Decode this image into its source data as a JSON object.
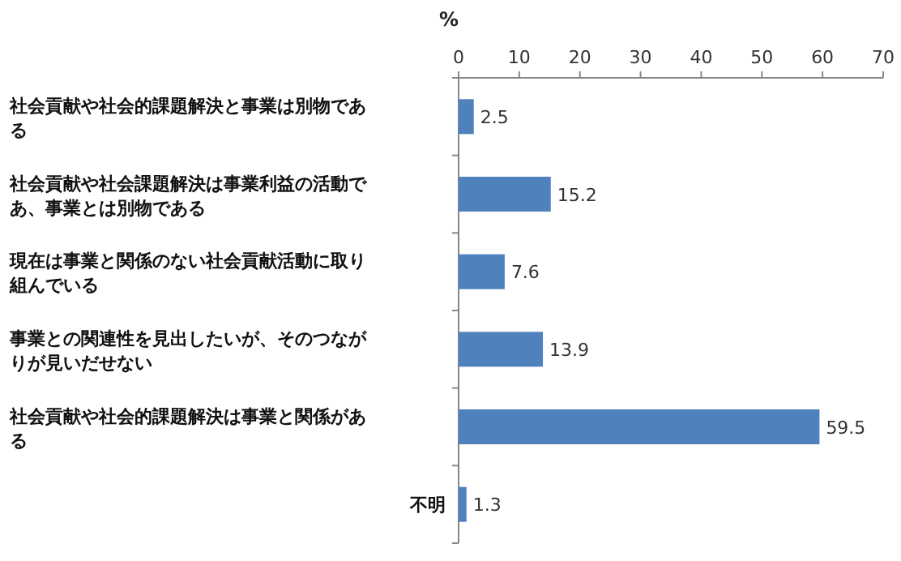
{
  "chart_data": {
    "type": "bar",
    "orientation": "horizontal",
    "xlabel": "%",
    "categories": [
      "社会貢献や社会的課題解決と事業は別物である",
      "社会貢献や社会課題解決は事業利益の活動であ、事業とは別物である",
      "現在は事業と関係のない社会貢献活動に取り組んでいる",
      "事業との関連性を見出したいが、そのつながりが見いだせない",
      "社会貢献や社会的課題解決は事業と関係がある",
      "不明"
    ],
    "values": [
      2.5,
      15.2,
      7.6,
      13.9,
      59.5,
      1.3
    ],
    "color": "#4f81bd",
    "xlim": [
      0,
      70
    ],
    "xticks": [
      0,
      10,
      20,
      30,
      40,
      50,
      60,
      70
    ],
    "data_labels": true
  }
}
